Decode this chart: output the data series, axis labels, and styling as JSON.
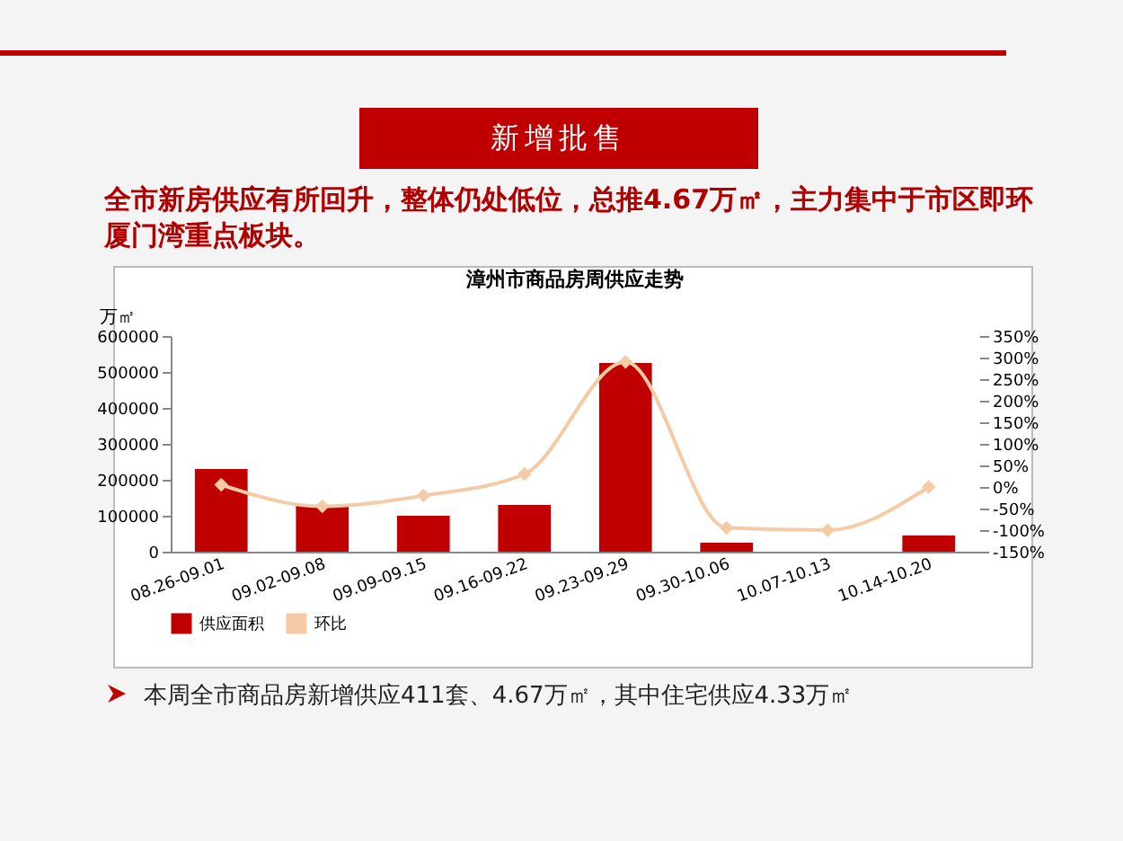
{
  "chart_data": {
    "type": "bar",
    "title": "漳州市商品房周供应走势",
    "ylabel": "万㎡",
    "categories": [
      "08.26-09.01",
      "09.02-09.08",
      "09.09-09.15",
      "09.16-09.22",
      "09.23-09.29",
      "09.30-10.06",
      "10.07-10.13",
      "10.14-10.20"
    ],
    "series": [
      {
        "name": "供应面积",
        "color": "#c00000",
        "values": [
          230000,
          130000,
          100000,
          130000,
          525000,
          25000,
          null,
          45000
        ]
      },
      {
        "name": "环比",
        "type": "line",
        "axis": "y2",
        "color": "#f5cba7",
        "marker": "diamond",
        "values": [
          5,
          -45,
          -20,
          30,
          290,
          -95,
          -100,
          0
        ]
      }
    ],
    "ylim": [
      0,
      600000
    ],
    "yticks": [
      0,
      100000,
      200000,
      300000,
      400000,
      500000,
      600000
    ],
    "y2lim": [
      -150,
      350
    ],
    "y2ticks": [
      {
        "value": -150,
        "label": "-150%"
      },
      {
        "value": -100,
        "label": "-100%"
      },
      {
        "value": -50,
        "label": "-50%"
      },
      {
        "value": 0,
        "label": "0%"
      },
      {
        "value": 50,
        "label": "50%"
      },
      {
        "value": 100,
        "label": "100%"
      },
      {
        "value": 150,
        "label": "150%"
      },
      {
        "value": 200,
        "label": "200%"
      },
      {
        "value": 250,
        "label": "250%"
      },
      {
        "value": 300,
        "label": "300%"
      },
      {
        "value": 350,
        "label": "350%"
      }
    ],
    "legend": "bottom",
    "grid": false,
    "annotations": [
      "新增批售",
      "全市新房供应有所回升，整体仍处低位，总推4.67万㎡，主力集中于市区即环厦门湾重点板块。",
      "本周全市商品房新增供应411套、4.67万㎡，其中住宅供应4.33万㎡"
    ]
  }
}
